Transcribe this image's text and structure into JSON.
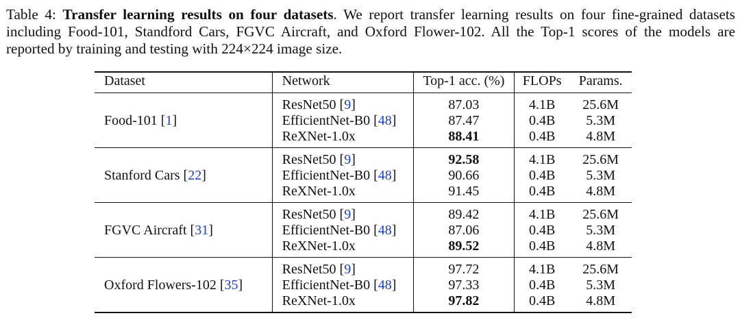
{
  "caption": {
    "label": "Table 4:",
    "title": "Transfer learning results on four datasets",
    "text": ". We report transfer learning results on four fine-grained datasets including Food-101, Standford Cars, FGVC Aircraft, and Oxford Flower-102. All the Top-1 scores of the models are reported by training and testing with 224×224 image size."
  },
  "table": {
    "headers": [
      "Dataset",
      "Network",
      "Top-1 acc. (%)",
      "FLOPs",
      "Params."
    ],
    "groups": [
      {
        "dataset": "Food-101",
        "dataset_ref": "1",
        "rows": [
          {
            "network": "ResNet50",
            "ref": "9",
            "acc": "87.03",
            "acc_bold": false,
            "flops": "4.1B",
            "params": "25.6M"
          },
          {
            "network": "EfficientNet-B0",
            "ref": "48",
            "acc": "87.47",
            "acc_bold": false,
            "flops": "0.4B",
            "params": "5.3M"
          },
          {
            "network": "ReXNet-1.0x",
            "ref": "",
            "acc": "88.41",
            "acc_bold": true,
            "flops": "0.4B",
            "params": "4.8M"
          }
        ]
      },
      {
        "dataset": "Stanford Cars",
        "dataset_ref": "22",
        "rows": [
          {
            "network": "ResNet50",
            "ref": "9",
            "acc": "92.58",
            "acc_bold": true,
            "flops": "4.1B",
            "params": "25.6M"
          },
          {
            "network": "EfficientNet-B0",
            "ref": "48",
            "acc": "90.66",
            "acc_bold": false,
            "flops": "0.4B",
            "params": "5.3M"
          },
          {
            "network": "ReXNet-1.0x",
            "ref": "",
            "acc": "91.45",
            "acc_bold": false,
            "flops": "0.4B",
            "params": "4.8M"
          }
        ]
      },
      {
        "dataset": "FGVC Aircraft",
        "dataset_ref": "31",
        "rows": [
          {
            "network": "ResNet50",
            "ref": "9",
            "acc": "89.42",
            "acc_bold": false,
            "flops": "4.1B",
            "params": "25.6M"
          },
          {
            "network": "EfficientNet-B0",
            "ref": "48",
            "acc": "87.06",
            "acc_bold": false,
            "flops": "0.4B",
            "params": "5.3M"
          },
          {
            "network": "ReXNet-1.0x",
            "ref": "",
            "acc": "89.52",
            "acc_bold": true,
            "flops": "0.4B",
            "params": "4.8M"
          }
        ]
      },
      {
        "dataset": "Oxford Flowers-102",
        "dataset_ref": "35",
        "rows": [
          {
            "network": "ResNet50",
            "ref": "9",
            "acc": "97.72",
            "acc_bold": false,
            "flops": "4.1B",
            "params": "25.6M"
          },
          {
            "network": "EfficientNet-B0",
            "ref": "48",
            "acc": "97.33",
            "acc_bold": false,
            "flops": "0.4B",
            "params": "5.3M"
          },
          {
            "network": "ReXNet-1.0x",
            "ref": "",
            "acc": "97.82",
            "acc_bold": true,
            "flops": "0.4B",
            "params": "4.8M"
          }
        ]
      }
    ]
  }
}
